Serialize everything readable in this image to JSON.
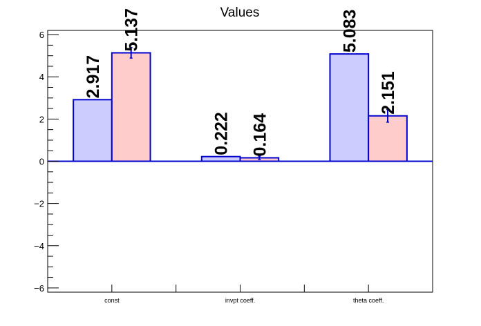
{
  "chart_data": {
    "type": "bar",
    "title": "Values",
    "xlabel": "",
    "ylabel": "",
    "categories": [
      "const",
      "invpt coeff.",
      "theta coeff."
    ],
    "series": [
      {
        "values": [
          2.917,
          0.222,
          5.083
        ],
        "labels": [
          "2.917",
          "0.222",
          "5.083"
        ],
        "errors": [
          0,
          0,
          0
        ],
        "fill": "#ccccff",
        "stroke": "#0000cc"
      },
      {
        "values": [
          5.137,
          0.164,
          2.151
        ],
        "labels": [
          "5.137",
          "0.164",
          "2.151"
        ],
        "errors": [
          0.25,
          0.08,
          0.3
        ],
        "fill": "#ffcccc",
        "stroke": "#0000cc"
      }
    ],
    "ylim": [
      -6.2,
      6.2
    ],
    "yticks": [
      -6,
      -4,
      -2,
      0,
      2,
      4,
      6
    ],
    "ytick_labels": [
      "−6",
      "−4",
      "−2",
      "0",
      "2",
      "4",
      "6"
    ],
    "grid": false,
    "legend": "none"
  }
}
